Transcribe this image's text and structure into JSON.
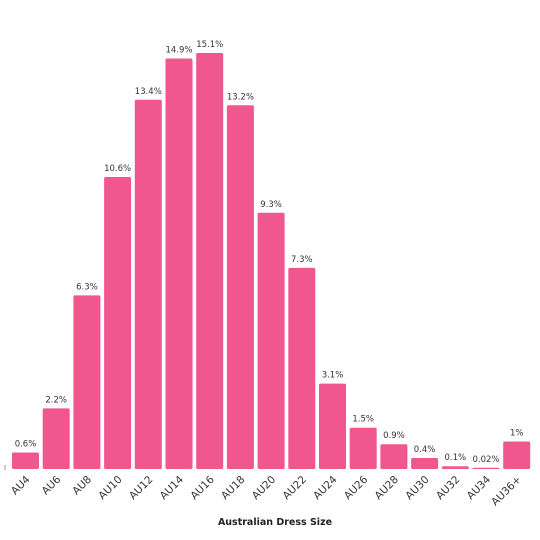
{
  "chart_data": {
    "type": "bar",
    "categories": [
      "AU4",
      "AU6",
      "AU8",
      "AU10",
      "AU12",
      "AU14",
      "AU16",
      "AU18",
      "AU20",
      "AU22",
      "AU24",
      "AU26",
      "AU28",
      "AU30",
      "AU32",
      "AU34",
      "AU36+"
    ],
    "values": [
      0.6,
      2.2,
      6.3,
      10.6,
      13.4,
      14.9,
      15.1,
      13.2,
      9.3,
      7.3,
      3.1,
      1.5,
      0.9,
      0.4,
      0.1,
      0.02,
      1
    ],
    "value_labels": [
      "0.6%",
      "2.2%",
      "6.3%",
      "10.6%",
      "13.4%",
      "14.9%",
      "15.1%",
      "13.2%",
      "9.3%",
      "7.3%",
      "3.1%",
      "1.5%",
      "0.9%",
      "0.4%",
      "0.1%",
      "0.02%",
      "1%"
    ],
    "xlabel": "Australian Dress Size",
    "ylabel": "",
    "ylim": [
      0,
      15.1
    ],
    "grid": false,
    "bar_color": "#f0578f"
  }
}
